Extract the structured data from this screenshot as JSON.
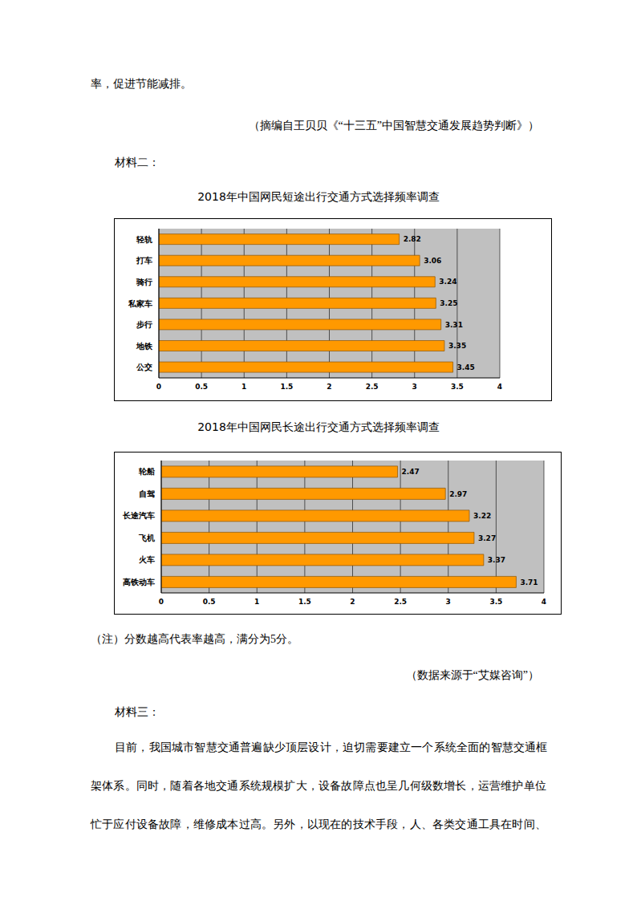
{
  "page": {
    "top_line": "率，促进节能减排。",
    "source1": "（摘编自王贝贝《“十三五”中国智慧交通发展趋势判断》）",
    "material2": "材料二：",
    "note": "（注）分数越高代表率越高，满分为5分。",
    "source2": "（数据来源于“艾媒咨询”）",
    "material3": "材料三：",
    "paragraph_lines": [
      "目前，我国城市智慧交通普遍缺少顶层设计，迫切需要建立一个系统全面的智慧交通框",
      "架体系。同时，随着各地交通系统规模扩大，设备故障点也呈几何级数增长，运营维护单位",
      "忙于应付设备故障，维修成本过高。另外，以现在的技术手段，人、各类交通工具在时间、"
    ]
  },
  "chart_data": [
    {
      "type": "bar",
      "orientation": "horizontal",
      "title": "2018年中国网民短途出行交通方式选择频率调查",
      "categories": [
        "轻轨",
        "打车",
        "骑行",
        "私家车",
        "步行",
        "地铁",
        "公交"
      ],
      "values": [
        2.82,
        3.06,
        3.24,
        3.25,
        3.31,
        3.35,
        3.45
      ],
      "color": "#ff9900",
      "xlim": [
        0,
        4
      ],
      "xticks": [
        0,
        0.5,
        1,
        1.5,
        2,
        2.5,
        3,
        3.5,
        4
      ],
      "grid": true,
      "data_labels": true
    },
    {
      "type": "bar",
      "orientation": "horizontal",
      "title": "2018年中国网民长途出行交通方式选择频率调查",
      "categories": [
        "轮船",
        "自驾",
        "长途汽车",
        "飞机",
        "火车",
        "高铁动车"
      ],
      "values": [
        2.47,
        2.97,
        3.22,
        3.27,
        3.37,
        3.71
      ],
      "color": "#ff9900",
      "xlim": [
        0,
        4
      ],
      "xticks": [
        0,
        0.5,
        1,
        1.5,
        2,
        2.5,
        3,
        3.5,
        4
      ],
      "grid": true,
      "data_labels": true
    }
  ]
}
